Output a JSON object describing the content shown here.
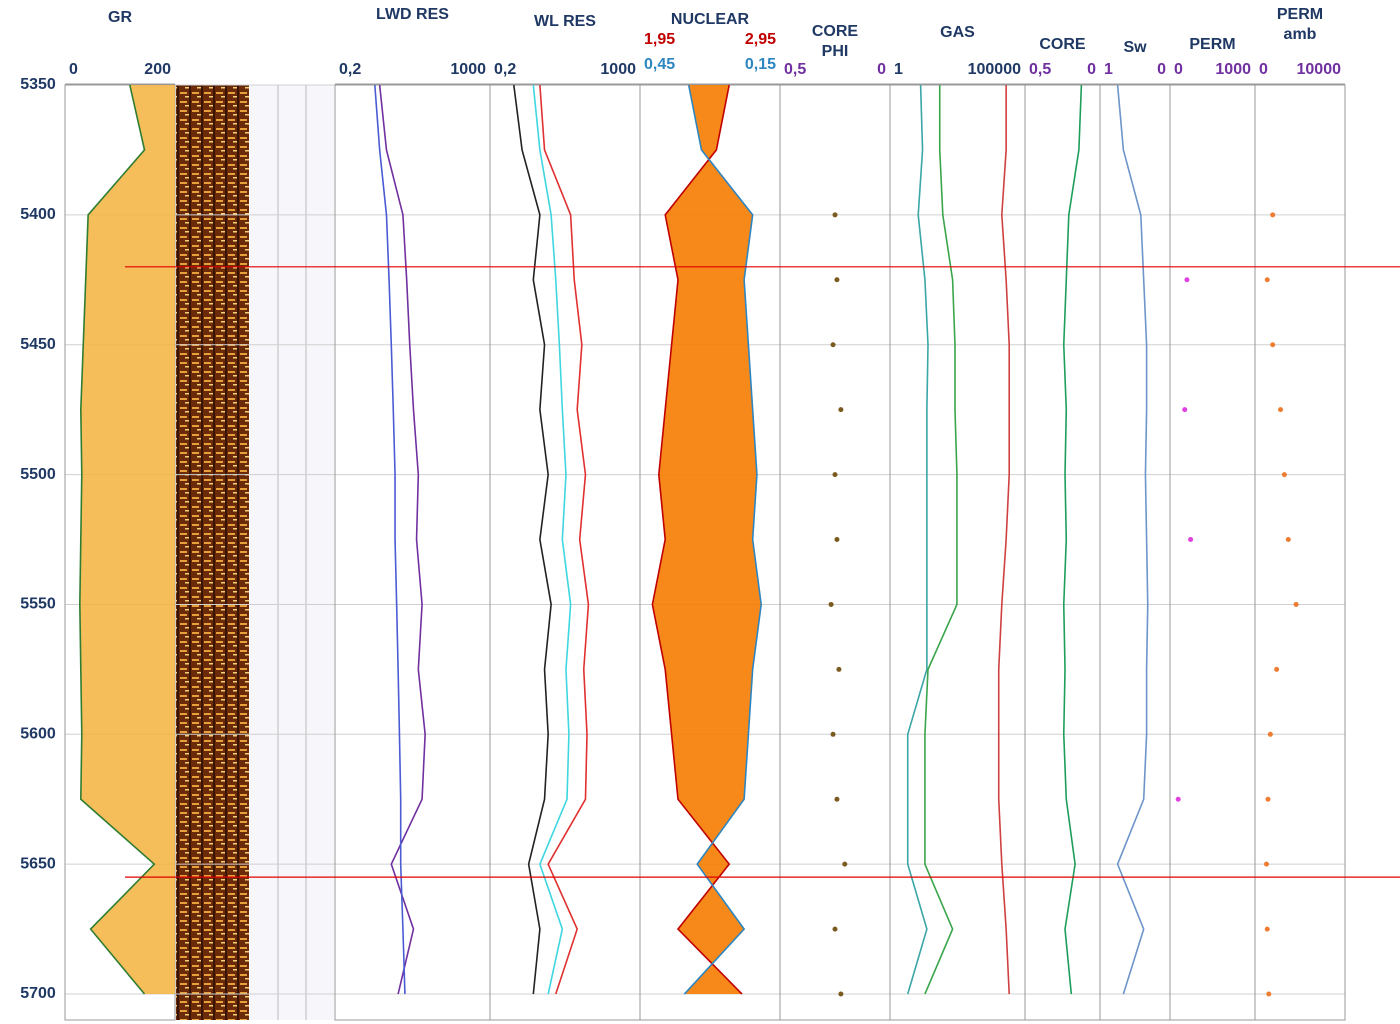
{
  "chart_data": {
    "type": "well-log",
    "ylim": [
      5350,
      5710
    ],
    "depth_ticks": [
      5350,
      5400,
      5450,
      5500,
      5550,
      5600,
      5650,
      5700
    ],
    "markers": [
      5420,
      5655
    ],
    "depth": [
      5350,
      5375,
      5400,
      5425,
      5450,
      5475,
      5500,
      5525,
      5550,
      5575,
      5600,
      5625,
      5650,
      5675,
      5700
    ],
    "tracks": [
      {
        "title": "GR",
        "xlim": [
          0,
          200
        ],
        "xticks": [
          0,
          200
        ],
        "tick_color": "#1f3864",
        "series": [
          {
            "color": "#2e7d32",
            "fill": "#f3b33d",
            "values": [
              120,
              150,
              35,
              30,
              25,
              20,
              22,
              20,
              18,
              20,
              22,
              20,
              170,
              40,
              150
            ]
          }
        ]
      },
      {
        "title": "LWD RES",
        "log": true,
        "xlim": [
          0.2,
          1000
        ],
        "xticks": [
          {
            "value": 0.2,
            "label": "0,2"
          },
          1000
        ],
        "tick_color": "#1f3864",
        "series": [
          {
            "color": "#7030a0",
            "values": [
              2,
              3,
              8,
              10,
              12,
              15,
              20,
              18,
              25,
              20,
              30,
              25,
              4,
              15,
              6
            ]
          },
          {
            "color": "#4a5bd4",
            "values": [
              1.5,
              2,
              3,
              3.5,
              4,
              4.5,
              5,
              5,
              5.5,
              6,
              6.5,
              7,
              7,
              8,
              9
            ]
          }
        ]
      },
      {
        "title": "WL RES",
        "log": true,
        "xlim": [
          0.2,
          1000
        ],
        "xticks": [
          {
            "value": 0.2,
            "label": "0,2"
          },
          1000
        ],
        "tick_color": "#1f3864",
        "series": [
          {
            "color": "#e03030",
            "values": [
              3,
              4,
              20,
              25,
              40,
              30,
              50,
              35,
              60,
              45,
              55,
              50,
              5,
              30,
              8
            ]
          },
          {
            "color": "#3ed6e0",
            "values": [
              2,
              3,
              6,
              8,
              10,
              12,
              15,
              12,
              20,
              15,
              18,
              16,
              3,
              12,
              5
            ]
          },
          {
            "color": "#222222",
            "values": [
              0.6,
              1,
              3,
              2,
              4,
              3,
              5,
              3,
              6,
              4,
              5,
              4,
              1.5,
              3,
              2
            ]
          }
        ]
      },
      {
        "title": "NUCLEAR",
        "xlim": [
          1.95,
          2.95
        ],
        "xticks": [
          {
            "value": 1.95,
            "label": "1,95"
          },
          {
            "value": 2.95,
            "label": "2,95"
          }
        ],
        "tick_color": "#c00000",
        "x2lim": [
          0.45,
          0.15
        ],
        "x2ticks": [
          {
            "value": 0.45,
            "label": "0,45"
          },
          {
            "value": 0.15,
            "label": "0,15"
          }
        ],
        "tick2_color": "#2e86c1",
        "crossover_fill": "#f57c00",
        "series": [
          {
            "color": "#c00000",
            "values": [
              2.6,
              2.5,
              2.1,
              2.2,
              2.15,
              2.1,
              2.05,
              2.1,
              2.0,
              2.1,
              2.15,
              2.2,
              2.6,
              2.2,
              2.7
            ]
          },
          {
            "color": "#2e86c1",
            "axis": "x2",
            "values": [
              0.35,
              0.32,
              0.2,
              0.22,
              0.21,
              0.2,
              0.19,
              0.2,
              0.18,
              0.2,
              0.21,
              0.22,
              0.33,
              0.22,
              0.36
            ]
          }
        ]
      },
      {
        "title": "CORE PHI",
        "xlim": [
          0.5,
          0
        ],
        "xticks": [
          {
            "value": 0.5,
            "label": "0,5"
          },
          0
        ],
        "tick_color": "#7030a0",
        "series": [
          {
            "color": "#7a5a1e",
            "style": "dots",
            "values": [
              null,
              null,
              0.25,
              0.24,
              0.26,
              0.22,
              0.25,
              0.24,
              0.27,
              0.23,
              0.26,
              0.24,
              0.2,
              0.25,
              0.22
            ]
          }
        ]
      },
      {
        "title": "GAS",
        "log": true,
        "xlim": [
          1,
          100000
        ],
        "xticks": [
          1,
          100000
        ],
        "tick_color": "#1f3864",
        "series": [
          {
            "color": "#3aa6a6",
            "values": [
              10,
              12,
              8,
              15,
              20,
              18,
              18,
              18,
              18,
              18,
              3,
              3,
              3,
              18,
              3
            ]
          },
          {
            "color": "#3aa54a",
            "values": [
              60,
              60,
              80,
              200,
              250,
              250,
              300,
              300,
              300,
              20,
              15,
              15,
              15,
              200,
              15
            ]
          },
          {
            "color": "#d04040",
            "values": [
              30000,
              30000,
              20000,
              30000,
              40000,
              40000,
              40000,
              30000,
              20000,
              15000,
              15000,
              15000,
              20000,
              30000,
              40000
            ]
          }
        ]
      },
      {
        "title": "CORE",
        "xlim": [
          0.5,
          0
        ],
        "xticks": [
          {
            "value": 0.5,
            "label": "0,5"
          },
          0
        ],
        "tick_color": "#7030a0",
        "series": [
          {
            "color": "#1e9e5a",
            "values": [
              0.1,
              0.12,
              0.2,
              0.22,
              0.24,
              0.22,
              0.23,
              0.22,
              0.24,
              0.23,
              0.24,
              0.22,
              0.15,
              0.23,
              0.18
            ]
          }
        ]
      },
      {
        "title": "Sw",
        "xlim": [
          1,
          0
        ],
        "xticks": [
          1,
          0
        ],
        "tick_color": "#7030a0",
        "series": [
          {
            "color": "#6d95c9",
            "values": [
              0.8,
              0.7,
              0.4,
              0.35,
              0.3,
              0.3,
              0.32,
              0.3,
              0.28,
              0.3,
              0.3,
              0.35,
              0.8,
              0.35,
              0.7
            ]
          }
        ]
      },
      {
        "title": "PERM",
        "xlim": [
          0,
          1000
        ],
        "xticks": [
          0,
          1000
        ],
        "tick_color": "#7030a0",
        "series": [
          {
            "color": "#e040e0",
            "style": "dots",
            "values": [
              null,
              null,
              null,
              150,
              null,
              120,
              null,
              200,
              null,
              null,
              null,
              30,
              null,
              null,
              null
            ]
          }
        ]
      },
      {
        "title": "PERM amb",
        "xlim": [
          0,
          10000
        ],
        "xticks": [
          0,
          10000
        ],
        "tick_color": "#7030a0",
        "series": [
          {
            "color": "#ee7d31",
            "style": "dots",
            "values": [
              null,
              null,
              1500,
              800,
              1500,
              2500,
              3000,
              3500,
              4500,
              2000,
              1200,
              900,
              700,
              800,
              1000
            ]
          }
        ]
      }
    ]
  }
}
